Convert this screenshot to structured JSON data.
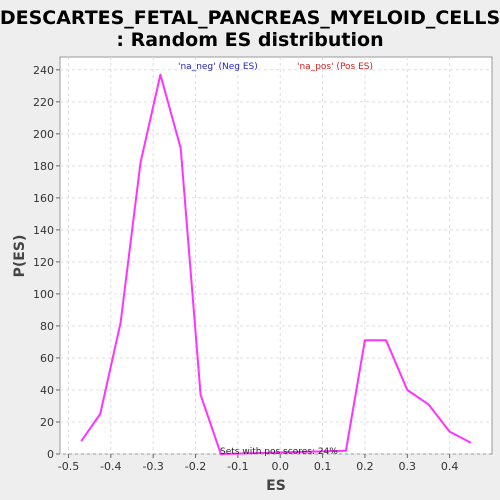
{
  "chart_data": {
    "type": "line",
    "title_line1": "DESCARTES_FETAL_PANCREAS_MYELOID_CELLS",
    "title_line2": ": Random ES distribution",
    "xlabel": "ES",
    "ylabel": "P(ES)",
    "xlim": [
      -0.52,
      0.5
    ],
    "ylim": [
      0,
      248
    ],
    "x_ticks": [
      -0.5,
      -0.4,
      -0.3,
      -0.2,
      -0.1,
      0.0,
      0.1,
      0.2,
      0.3,
      0.4
    ],
    "x_tick_labels": [
      "-0.5",
      "-0.4",
      "-0.3",
      "-0.2",
      "-0.1",
      "0.0",
      "0.1",
      "0.2",
      "0.3",
      "0.4"
    ],
    "y_ticks": [
      0,
      20,
      40,
      60,
      80,
      100,
      120,
      140,
      160,
      180,
      200,
      220,
      240
    ],
    "y_tick_labels": [
      "0",
      "20",
      "40",
      "60",
      "80",
      "100",
      "120",
      "140",
      "160",
      "180",
      "200",
      "220",
      "240"
    ],
    "grid": true,
    "legend": [
      {
        "label": "'na_neg' (Neg ES)",
        "color": "#2222cc"
      },
      {
        "label": "'na_pos' (Pos ES)",
        "color": "#cc2222"
      }
    ],
    "annotation": "Sets with pos scores: 24%",
    "series": [
      {
        "color": "#ff33ff",
        "x": [
          -0.47,
          -0.425,
          -0.377,
          -0.33,
          -0.283,
          -0.235,
          -0.188,
          -0.14,
          0.155,
          0.2,
          0.25,
          0.3,
          0.35,
          0.4,
          0.45
        ],
        "y": [
          8,
          25,
          82,
          182,
          237,
          191,
          37,
          0,
          2,
          71,
          71,
          40,
          31,
          14,
          7
        ]
      }
    ]
  }
}
